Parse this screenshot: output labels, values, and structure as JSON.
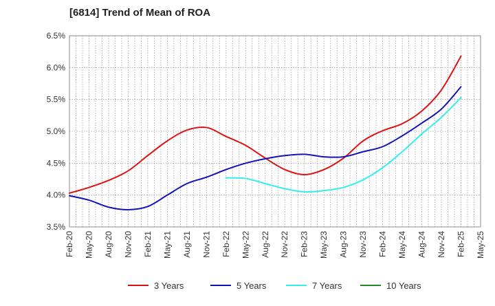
{
  "chart_data": {
    "type": "line",
    "title": "[6814]  Trend of Mean of ROA",
    "xlabel": "",
    "ylabel": "",
    "ylim": [
      3.5,
      6.5
    ],
    "yticks": [
      3.5,
      4.0,
      4.5,
      5.0,
      5.5,
      6.0,
      6.5
    ],
    "ytick_labels": [
      "3.5%",
      "4.0%",
      "4.5%",
      "5.0%",
      "5.5%",
      "6.0%",
      "6.5%"
    ],
    "x_index_range": [
      0,
      63
    ],
    "xtick_labels": [
      "Feb-20",
      "May-20",
      "Aug-20",
      "Nov-20",
      "Feb-21",
      "May-21",
      "Aug-21",
      "Nov-21",
      "Feb-22",
      "May-22",
      "Aug-22",
      "Nov-22",
      "Feb-23",
      "May-23",
      "Aug-23",
      "Nov-23",
      "Feb-24",
      "May-24",
      "Aug-24",
      "Nov-24",
      "Feb-25",
      "May-25"
    ],
    "grid": true,
    "legend_position": "bottom",
    "series": [
      {
        "name": "3 Years",
        "color": "#dd1111",
        "points": [
          [
            0,
            4.03
          ],
          [
            3,
            4.12
          ],
          [
            6,
            4.23
          ],
          [
            9,
            4.38
          ],
          [
            12,
            4.62
          ],
          [
            15,
            4.85
          ],
          [
            18,
            5.02
          ],
          [
            21,
            5.06
          ],
          [
            24,
            4.92
          ],
          [
            27,
            4.78
          ],
          [
            30,
            4.58
          ],
          [
            33,
            4.4
          ],
          [
            36,
            4.32
          ],
          [
            39,
            4.4
          ],
          [
            42,
            4.58
          ],
          [
            45,
            4.85
          ],
          [
            48,
            5.01
          ],
          [
            51,
            5.12
          ],
          [
            54,
            5.32
          ],
          [
            57,
            5.65
          ],
          [
            60,
            6.18
          ]
        ]
      },
      {
        "name": "5 Years",
        "color": "#1111bb",
        "points": [
          [
            0,
            3.99
          ],
          [
            3,
            3.92
          ],
          [
            6,
            3.81
          ],
          [
            9,
            3.77
          ],
          [
            12,
            3.82
          ],
          [
            15,
            4.0
          ],
          [
            18,
            4.18
          ],
          [
            21,
            4.28
          ],
          [
            24,
            4.4
          ],
          [
            27,
            4.5
          ],
          [
            30,
            4.57
          ],
          [
            33,
            4.62
          ],
          [
            36,
            4.64
          ],
          [
            39,
            4.6
          ],
          [
            42,
            4.6
          ],
          [
            45,
            4.68
          ],
          [
            48,
            4.76
          ],
          [
            51,
            4.93
          ],
          [
            54,
            5.13
          ],
          [
            57,
            5.35
          ],
          [
            60,
            5.7
          ]
        ]
      },
      {
        "name": "7 Years",
        "color": "#33eeee",
        "points": [
          [
            24,
            4.27
          ],
          [
            27,
            4.26
          ],
          [
            30,
            4.18
          ],
          [
            33,
            4.1
          ],
          [
            36,
            4.05
          ],
          [
            39,
            4.07
          ],
          [
            42,
            4.12
          ],
          [
            45,
            4.24
          ],
          [
            48,
            4.43
          ],
          [
            51,
            4.68
          ],
          [
            54,
            4.96
          ],
          [
            57,
            5.22
          ],
          [
            60,
            5.53
          ]
        ]
      },
      {
        "name": "10 Years",
        "color": "#228822",
        "points": []
      }
    ]
  }
}
